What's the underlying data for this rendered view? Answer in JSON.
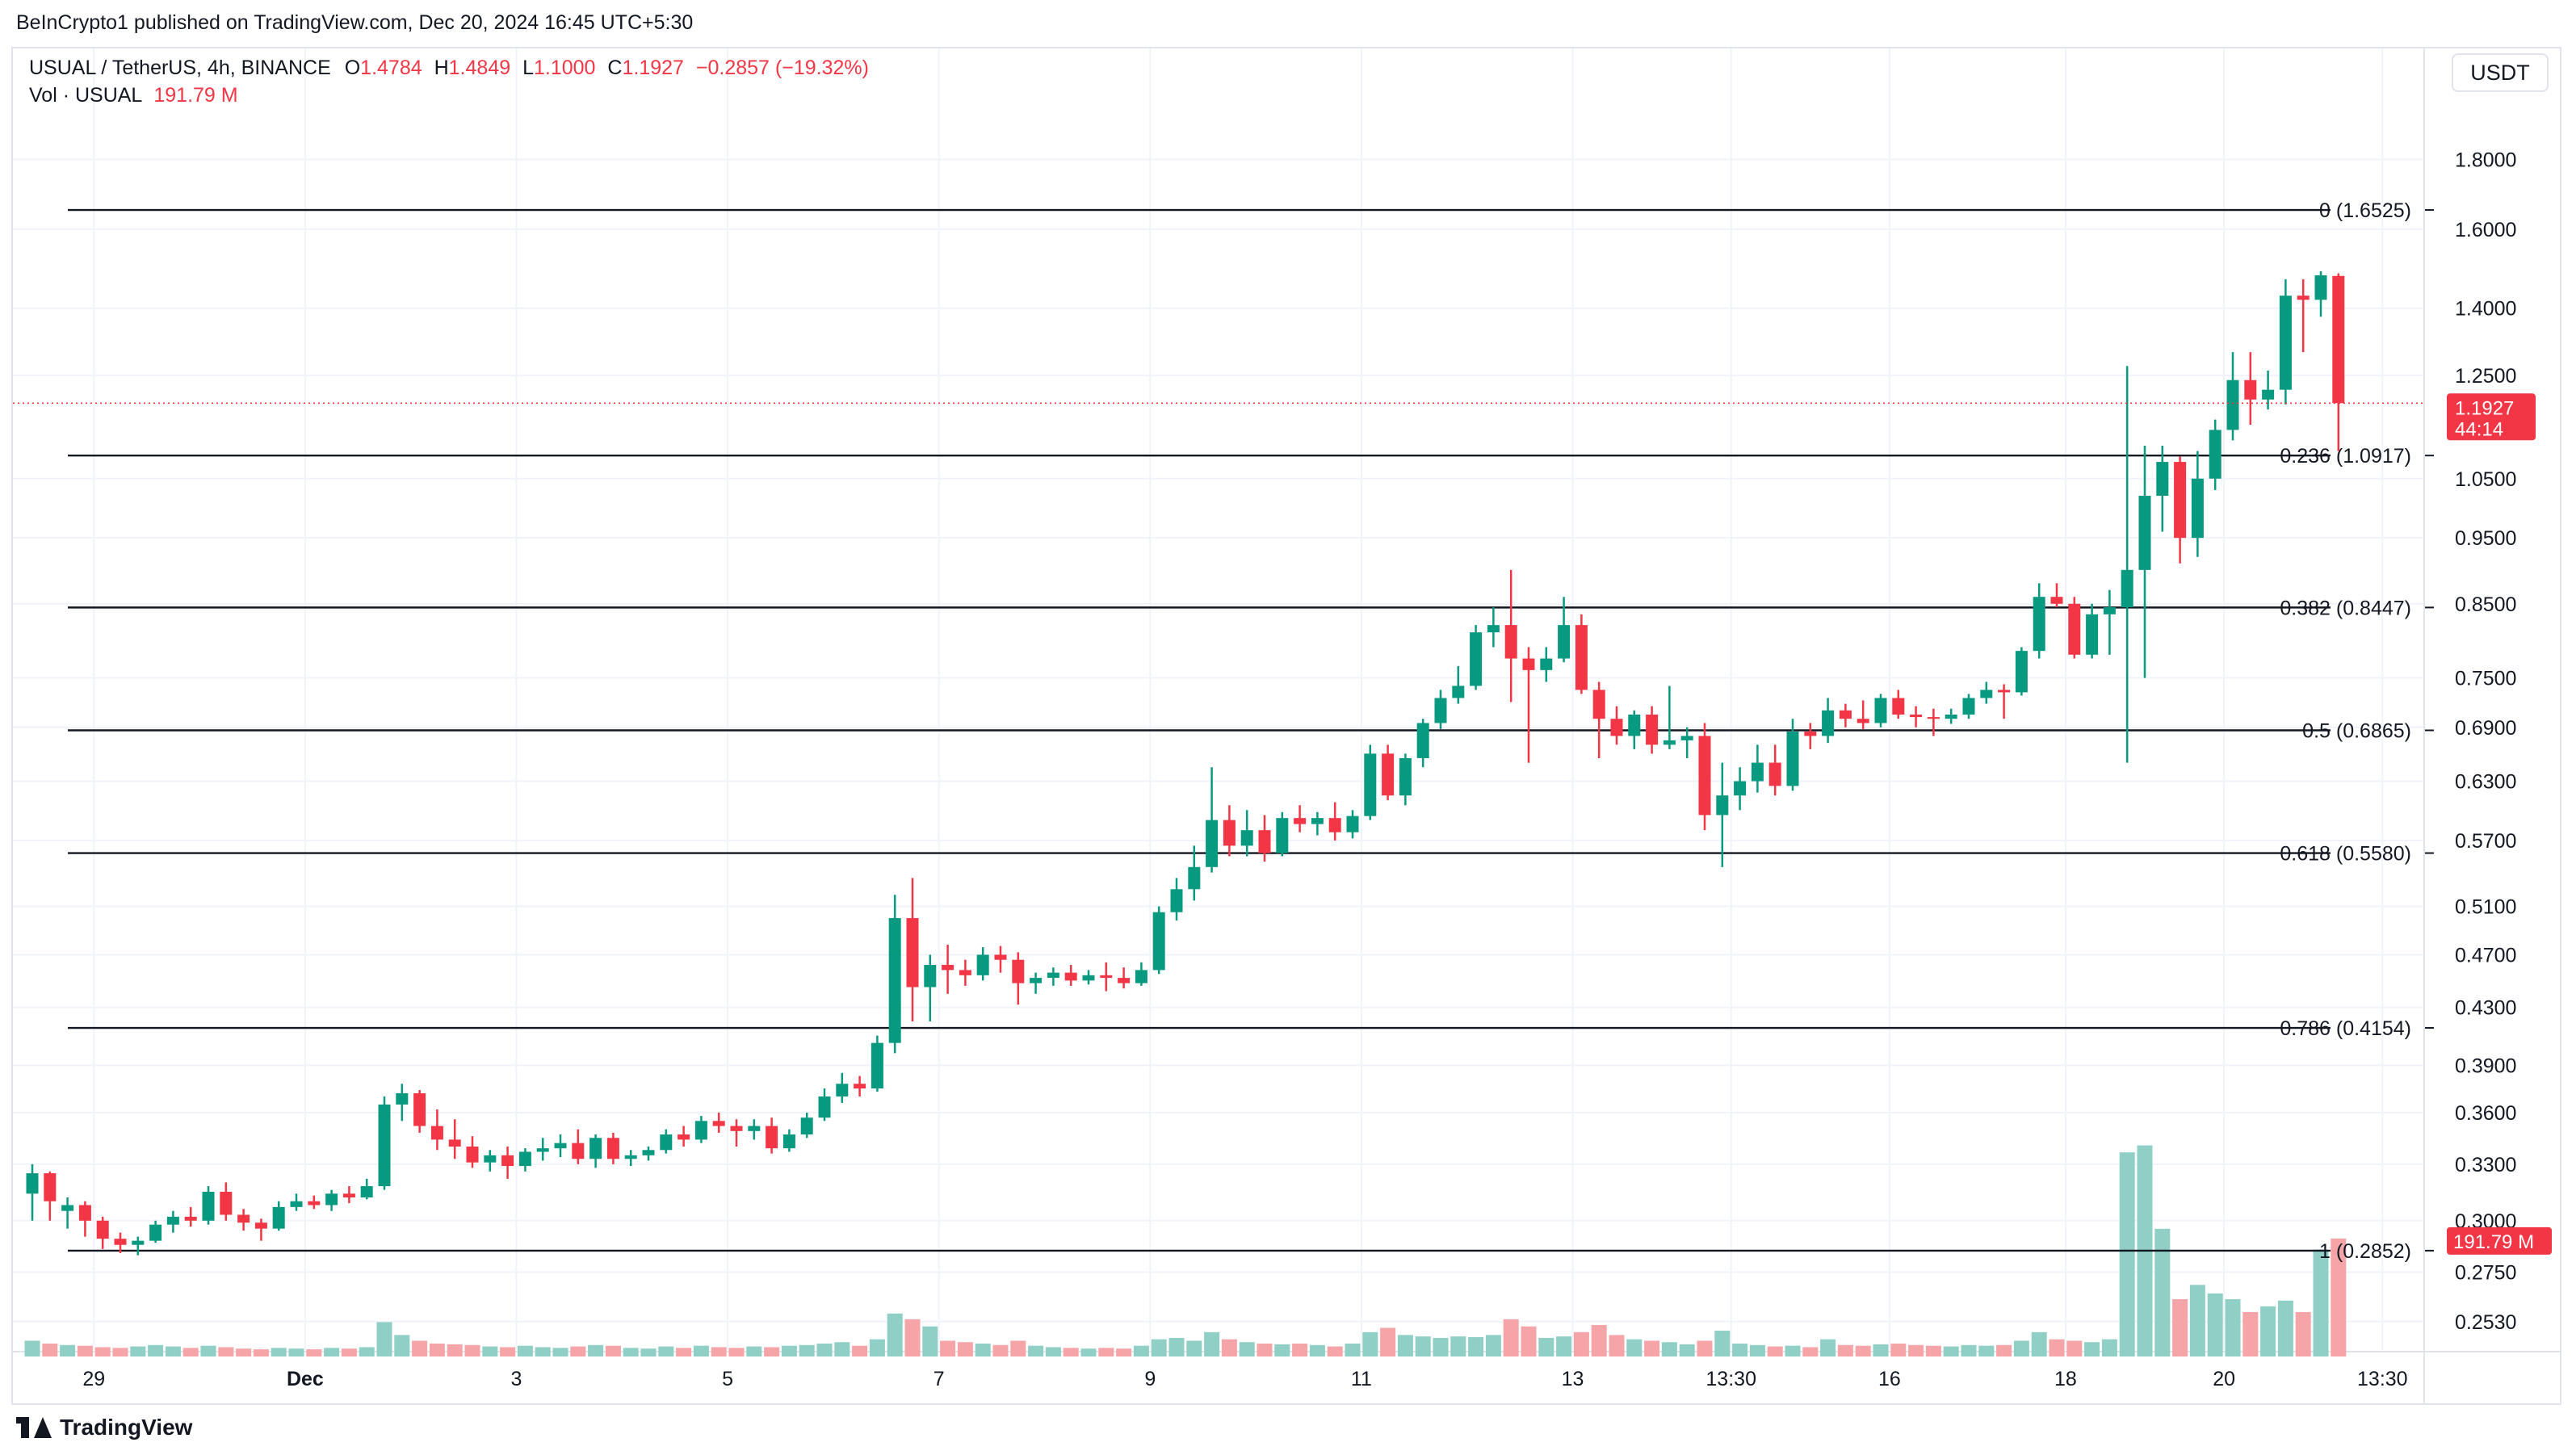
{
  "header": {
    "published_text": "BeInCrypto1 published on TradingView.com, Dec 20, 2024 16:45 UTC+5:30"
  },
  "legend": {
    "symbol": "USUAL / TetherUS, 4h, BINANCE",
    "o_label": "O",
    "o_value": "1.4784",
    "h_label": "H",
    "h_value": "1.4849",
    "l_label": "L",
    "l_value": "1.1000",
    "c_label": "C",
    "c_value": "1.1927",
    "change": "−0.2857 (−19.32%)",
    "vol_label": "Vol · USUAL",
    "vol_value": "191.79 M"
  },
  "currency_button": "USDT",
  "footer": {
    "logo_text": "TradingView"
  },
  "colors": {
    "up": "#089981",
    "down": "#f23645",
    "vol_up": "#8fcfc6",
    "vol_down": "#f5a5a8",
    "grid": "#f0f3fa",
    "fib_line": "#131722"
  },
  "chart_data": {
    "type": "candlestick",
    "scale": "log",
    "timeframe": "4h",
    "ylim": [
      0.2353,
      1.92
    ],
    "y_ticks": [
      1.8,
      1.6,
      1.4,
      1.25,
      1.05,
      0.95,
      0.85,
      0.75,
      0.69,
      0.63,
      0.57,
      0.51,
      0.47,
      0.43,
      0.39,
      0.36,
      0.33,
      0.3,
      0.275,
      0.253
    ],
    "y_tick_labels": [
      "1.8000",
      "1.6000",
      "1.4000",
      "1.2500",
      "1.0500",
      "0.9500",
      "0.8500",
      "0.7500",
      "0.6900",
      "0.6300",
      "0.5700",
      "0.5100",
      "0.4700",
      "0.4300",
      "0.3900",
      "0.3600",
      "0.3300",
      "0.3000",
      "0.2750",
      "0.2530"
    ],
    "x_labels": [
      {
        "text": "29",
        "i": 3.5,
        "bold": false
      },
      {
        "text": "Dec",
        "i": 15.5,
        "bold": true
      },
      {
        "text": "3",
        "i": 27.5,
        "bold": false
      },
      {
        "text": "5",
        "i": 39.5,
        "bold": false
      },
      {
        "text": "7",
        "i": 51.5,
        "bold": false
      },
      {
        "text": "9",
        "i": 63.5,
        "bold": false
      },
      {
        "text": "11",
        "i": 75.5,
        "bold": false
      },
      {
        "text": "13",
        "i": 87.5,
        "bold": false
      },
      {
        "text": "13:30",
        "i": 96.5,
        "bold": false
      },
      {
        "text": "16",
        "i": 105.5,
        "bold": false
      },
      {
        "text": "18",
        "i": 115.5,
        "bold": false
      },
      {
        "text": "20",
        "i": 124.5,
        "bold": false
      },
      {
        "text": "13:30",
        "i": 133.5,
        "bold": false
      }
    ],
    "fib_levels": [
      {
        "ratio": "0",
        "label": "0 (1.6525)",
        "price": 1.6525
      },
      {
        "ratio": "0.236",
        "label": "0.236 (1.0917)",
        "price": 1.0917
      },
      {
        "ratio": "0.382",
        "label": "0.382 (0.8447)",
        "price": 0.8447
      },
      {
        "ratio": "0.5",
        "label": "0.5 (0.6865)",
        "price": 0.6865
      },
      {
        "ratio": "0.618",
        "label": "0.618 (0.5580)",
        "price": 0.558
      },
      {
        "ratio": "0.786",
        "label": "0.786 (0.4154)",
        "price": 0.4154
      },
      {
        "ratio": "1",
        "label": "1 (0.2852)",
        "price": 0.2852
      }
    ],
    "last_price": {
      "price": 1.1927,
      "label": "1.1927",
      "countdown": "44:14"
    },
    "last_volume": {
      "label": "191.79 M"
    },
    "candles": [
      [
        0.314,
        0.33,
        0.3,
        0.325,
        22
      ],
      [
        0.325,
        0.326,
        0.3,
        0.31,
        18
      ],
      [
        0.305,
        0.312,
        0.296,
        0.308,
        16
      ],
      [
        0.308,
        0.31,
        0.292,
        0.3,
        15
      ],
      [
        0.3,
        0.302,
        0.286,
        0.291,
        13
      ],
      [
        0.291,
        0.294,
        0.284,
        0.288,
        12
      ],
      [
        0.288,
        0.292,
        0.283,
        0.29,
        14
      ],
      [
        0.29,
        0.3,
        0.289,
        0.298,
        16
      ],
      [
        0.298,
        0.305,
        0.294,
        0.302,
        14
      ],
      [
        0.302,
        0.307,
        0.297,
        0.3,
        12
      ],
      [
        0.3,
        0.318,
        0.298,
        0.315,
        15
      ],
      [
        0.315,
        0.32,
        0.3,
        0.303,
        13
      ],
      [
        0.303,
        0.306,
        0.295,
        0.299,
        11
      ],
      [
        0.299,
        0.301,
        0.29,
        0.296,
        10
      ],
      [
        0.296,
        0.31,
        0.295,
        0.307,
        12
      ],
      [
        0.307,
        0.314,
        0.305,
        0.31,
        11
      ],
      [
        0.31,
        0.313,
        0.306,
        0.308,
        10
      ],
      [
        0.308,
        0.316,
        0.305,
        0.314,
        12
      ],
      [
        0.314,
        0.318,
        0.309,
        0.312,
        11
      ],
      [
        0.312,
        0.322,
        0.311,
        0.318,
        13
      ],
      [
        0.318,
        0.37,
        0.316,
        0.365,
        48
      ],
      [
        0.365,
        0.378,
        0.355,
        0.372,
        30
      ],
      [
        0.372,
        0.374,
        0.348,
        0.352,
        22
      ],
      [
        0.352,
        0.362,
        0.338,
        0.344,
        18
      ],
      [
        0.344,
        0.356,
        0.333,
        0.34,
        17
      ],
      [
        0.34,
        0.346,
        0.328,
        0.331,
        16
      ],
      [
        0.331,
        0.338,
        0.326,
        0.335,
        14
      ],
      [
        0.335,
        0.34,
        0.322,
        0.329,
        13
      ],
      [
        0.329,
        0.339,
        0.326,
        0.337,
        15
      ],
      [
        0.337,
        0.345,
        0.332,
        0.339,
        13
      ],
      [
        0.339,
        0.347,
        0.334,
        0.342,
        12
      ],
      [
        0.342,
        0.35,
        0.33,
        0.333,
        14
      ],
      [
        0.333,
        0.347,
        0.328,
        0.345,
        16
      ],
      [
        0.345,
        0.348,
        0.33,
        0.333,
        15
      ],
      [
        0.333,
        0.338,
        0.329,
        0.335,
        12
      ],
      [
        0.335,
        0.34,
        0.332,
        0.338,
        11
      ],
      [
        0.338,
        0.35,
        0.336,
        0.347,
        14
      ],
      [
        0.347,
        0.352,
        0.34,
        0.344,
        12
      ],
      [
        0.344,
        0.358,
        0.342,
        0.355,
        15
      ],
      [
        0.355,
        0.36,
        0.348,
        0.352,
        13
      ],
      [
        0.352,
        0.356,
        0.34,
        0.349,
        12
      ],
      [
        0.349,
        0.356,
        0.344,
        0.352,
        14
      ],
      [
        0.352,
        0.357,
        0.336,
        0.339,
        13
      ],
      [
        0.339,
        0.35,
        0.337,
        0.347,
        15
      ],
      [
        0.347,
        0.36,
        0.345,
        0.357,
        16
      ],
      [
        0.357,
        0.375,
        0.355,
        0.37,
        18
      ],
      [
        0.37,
        0.385,
        0.366,
        0.378,
        20
      ],
      [
        0.378,
        0.383,
        0.37,
        0.375,
        15
      ],
      [
        0.375,
        0.41,
        0.373,
        0.405,
        24
      ],
      [
        0.405,
        0.52,
        0.398,
        0.5,
        60
      ],
      [
        0.5,
        0.535,
        0.42,
        0.445,
        52
      ],
      [
        0.445,
        0.47,
        0.42,
        0.462,
        42
      ],
      [
        0.462,
        0.478,
        0.44,
        0.458,
        22
      ],
      [
        0.458,
        0.466,
        0.446,
        0.454,
        20
      ],
      [
        0.454,
        0.476,
        0.45,
        0.47,
        18
      ],
      [
        0.47,
        0.477,
        0.456,
        0.466,
        16
      ],
      [
        0.466,
        0.472,
        0.432,
        0.448,
        22
      ],
      [
        0.448,
        0.456,
        0.44,
        0.452,
        15
      ],
      [
        0.452,
        0.46,
        0.446,
        0.456,
        13
      ],
      [
        0.456,
        0.462,
        0.446,
        0.45,
        12
      ],
      [
        0.45,
        0.458,
        0.447,
        0.454,
        11
      ],
      [
        0.454,
        0.464,
        0.442,
        0.452,
        12
      ],
      [
        0.452,
        0.46,
        0.444,
        0.448,
        11
      ],
      [
        0.448,
        0.464,
        0.446,
        0.458,
        15
      ],
      [
        0.458,
        0.51,
        0.455,
        0.505,
        24
      ],
      [
        0.505,
        0.535,
        0.498,
        0.525,
        26
      ],
      [
        0.525,
        0.565,
        0.515,
        0.545,
        22
      ],
      [
        0.545,
        0.645,
        0.54,
        0.59,
        34
      ],
      [
        0.59,
        0.605,
        0.555,
        0.565,
        24
      ],
      [
        0.565,
        0.6,
        0.555,
        0.58,
        20
      ],
      [
        0.58,
        0.595,
        0.55,
        0.558,
        18
      ],
      [
        0.558,
        0.598,
        0.555,
        0.592,
        17
      ],
      [
        0.592,
        0.605,
        0.578,
        0.586,
        18
      ],
      [
        0.586,
        0.598,
        0.575,
        0.592,
        16
      ],
      [
        0.592,
        0.608,
        0.57,
        0.578,
        14
      ],
      [
        0.578,
        0.6,
        0.572,
        0.594,
        18
      ],
      [
        0.594,
        0.67,
        0.59,
        0.66,
        34
      ],
      [
        0.66,
        0.67,
        0.61,
        0.615,
        40
      ],
      [
        0.615,
        0.66,
        0.605,
        0.655,
        30
      ],
      [
        0.655,
        0.7,
        0.645,
        0.695,
        28
      ],
      [
        0.695,
        0.735,
        0.688,
        0.725,
        26
      ],
      [
        0.725,
        0.765,
        0.718,
        0.74,
        28
      ],
      [
        0.74,
        0.82,
        0.735,
        0.81,
        27
      ],
      [
        0.81,
        0.845,
        0.79,
        0.82,
        30
      ],
      [
        0.82,
        0.9,
        0.72,
        0.775,
        52
      ],
      [
        0.775,
        0.79,
        0.65,
        0.76,
        42
      ],
      [
        0.76,
        0.79,
        0.745,
        0.775,
        26
      ],
      [
        0.775,
        0.86,
        0.77,
        0.82,
        28
      ],
      [
        0.82,
        0.835,
        0.73,
        0.735,
        34
      ],
      [
        0.735,
        0.745,
        0.655,
        0.7,
        44
      ],
      [
        0.7,
        0.715,
        0.67,
        0.68,
        30
      ],
      [
        0.68,
        0.71,
        0.665,
        0.705,
        24
      ],
      [
        0.705,
        0.715,
        0.66,
        0.67,
        22
      ],
      [
        0.67,
        0.74,
        0.665,
        0.675,
        20
      ],
      [
        0.675,
        0.69,
        0.655,
        0.68,
        17
      ],
      [
        0.68,
        0.695,
        0.58,
        0.595,
        22
      ],
      [
        0.595,
        0.65,
        0.545,
        0.615,
        36
      ],
      [
        0.615,
        0.645,
        0.6,
        0.63,
        18
      ],
      [
        0.63,
        0.67,
        0.618,
        0.65,
        16
      ],
      [
        0.65,
        0.67,
        0.615,
        0.625,
        14
      ],
      [
        0.625,
        0.7,
        0.62,
        0.685,
        15
      ],
      [
        0.685,
        0.695,
        0.665,
        0.68,
        13
      ],
      [
        0.68,
        0.725,
        0.672,
        0.71,
        24
      ],
      [
        0.71,
        0.718,
        0.69,
        0.7,
        16
      ],
      [
        0.7,
        0.722,
        0.688,
        0.695,
        15
      ],
      [
        0.695,
        0.73,
        0.69,
        0.725,
        17
      ],
      [
        0.725,
        0.735,
        0.7,
        0.705,
        18
      ],
      [
        0.705,
        0.715,
        0.69,
        0.702,
        16
      ],
      [
        0.702,
        0.712,
        0.68,
        0.7,
        15
      ],
      [
        0.7,
        0.712,
        0.694,
        0.705,
        14
      ],
      [
        0.705,
        0.73,
        0.7,
        0.725,
        16
      ],
      [
        0.725,
        0.745,
        0.718,
        0.735,
        15
      ],
      [
        0.735,
        0.742,
        0.7,
        0.732,
        16
      ],
      [
        0.732,
        0.79,
        0.728,
        0.785,
        22
      ],
      [
        0.785,
        0.88,
        0.775,
        0.86,
        34
      ],
      [
        0.86,
        0.88,
        0.845,
        0.85,
        24
      ],
      [
        0.85,
        0.86,
        0.775,
        0.78,
        22
      ],
      [
        0.78,
        0.85,
        0.775,
        0.835,
        20
      ],
      [
        0.835,
        0.87,
        0.78,
        0.845,
        24
      ],
      [
        0.845,
        1.27,
        0.65,
        0.9,
        290
      ],
      [
        0.9,
        1.11,
        0.75,
        1.02,
        300
      ],
      [
        1.02,
        1.11,
        0.96,
        1.08,
        180
      ],
      [
        1.08,
        1.09,
        0.91,
        0.95,
        80
      ],
      [
        0.95,
        1.1,
        0.92,
        1.05,
        100
      ],
      [
        1.05,
        1.16,
        1.03,
        1.14,
        88
      ],
      [
        1.14,
        1.3,
        1.12,
        1.24,
        80
      ],
      [
        1.24,
        1.3,
        1.15,
        1.2,
        62
      ],
      [
        1.2,
        1.26,
        1.18,
        1.22,
        70
      ],
      [
        1.22,
        1.47,
        1.19,
        1.43,
        78
      ],
      [
        1.43,
        1.47,
        1.3,
        1.42,
        62
      ],
      [
        1.42,
        1.49,
        1.38,
        1.48,
        150
      ],
      [
        1.4784,
        1.4849,
        1.1,
        1.1927,
        166
      ]
    ]
  }
}
